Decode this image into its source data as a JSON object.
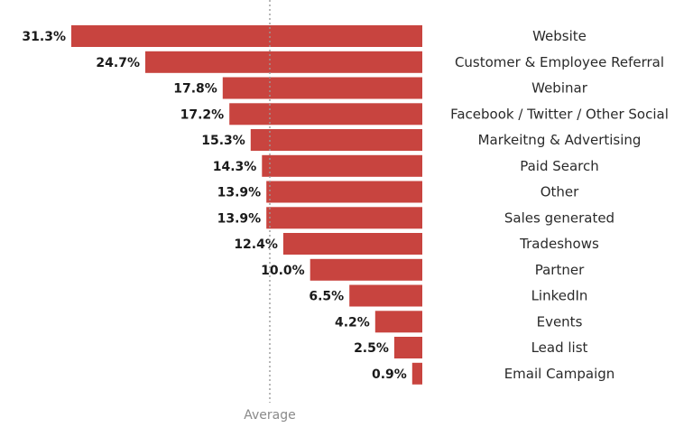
{
  "chart_data": {
    "type": "bar",
    "orientation": "horizontal",
    "categories": [
      "Website",
      "Customer & Employee Referral",
      "Webinar",
      "Facebook / Twitter / Other Social",
      "Markeitng & Advertising",
      "Paid Search",
      "Other",
      "Sales generated",
      "Tradeshows",
      "Partner",
      "LinkedIn",
      "Events",
      "Lead list",
      "Email Campaign"
    ],
    "values": [
      31.3,
      24.7,
      17.8,
      17.2,
      15.3,
      14.3,
      13.9,
      13.9,
      12.4,
      10.0,
      6.5,
      4.2,
      2.5,
      0.9
    ],
    "value_labels": [
      "31.3%",
      "24.7%",
      "17.8%",
      "17.2%",
      "15.3%",
      "14.3%",
      "13.9%",
      "13.9%",
      "12.4%",
      "10.0%",
      "6.5%",
      "4.2%",
      "2.5%",
      "0.9%"
    ],
    "reference_line": {
      "label": "Average",
      "value": 13.6
    },
    "bar_color": "#c8443f",
    "grid": false,
    "legend": "none"
  }
}
